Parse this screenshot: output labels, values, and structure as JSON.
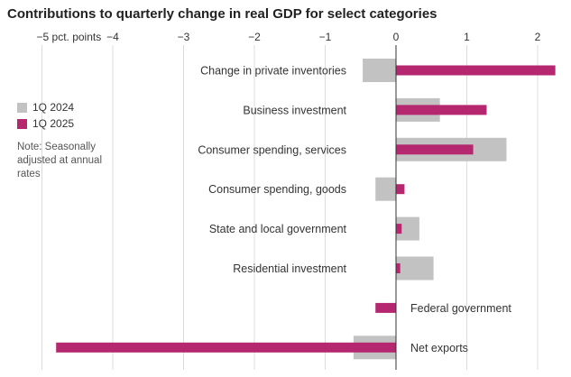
{
  "chart_data": {
    "type": "bar",
    "orientation": "horizontal",
    "title": "Contributions to quarterly change in real GDP for select categories",
    "categories": [
      "Change in private inventories",
      "Business investment",
      "Consumer spending, services",
      "Consumer spending, goods",
      "State and local government",
      "Residential investment",
      "Federal government",
      "Net exports"
    ],
    "series": [
      {
        "name": "1Q 2024",
        "color": "#c2c2c2",
        "values": [
          -0.47,
          0.62,
          1.56,
          -0.29,
          0.33,
          0.53,
          0.0,
          -0.6
        ]
      },
      {
        "name": "1Q 2025",
        "color": "#b5286f",
        "values": [
          2.25,
          1.28,
          1.09,
          0.12,
          0.08,
          0.06,
          -0.29,
          -4.8
        ]
      }
    ],
    "xlim": [
      -5.5,
      2.3
    ],
    "ticks": [
      -5,
      -4,
      -3,
      -2,
      -1,
      0,
      1,
      2
    ],
    "tick_labels": [
      "−5 pct. points",
      "−4",
      "−3",
      "−2",
      "−1",
      "0",
      "1",
      "2"
    ],
    "grid": true,
    "legend_position": "left",
    "note": "Note: Seasonally adjusted at annual rates"
  }
}
